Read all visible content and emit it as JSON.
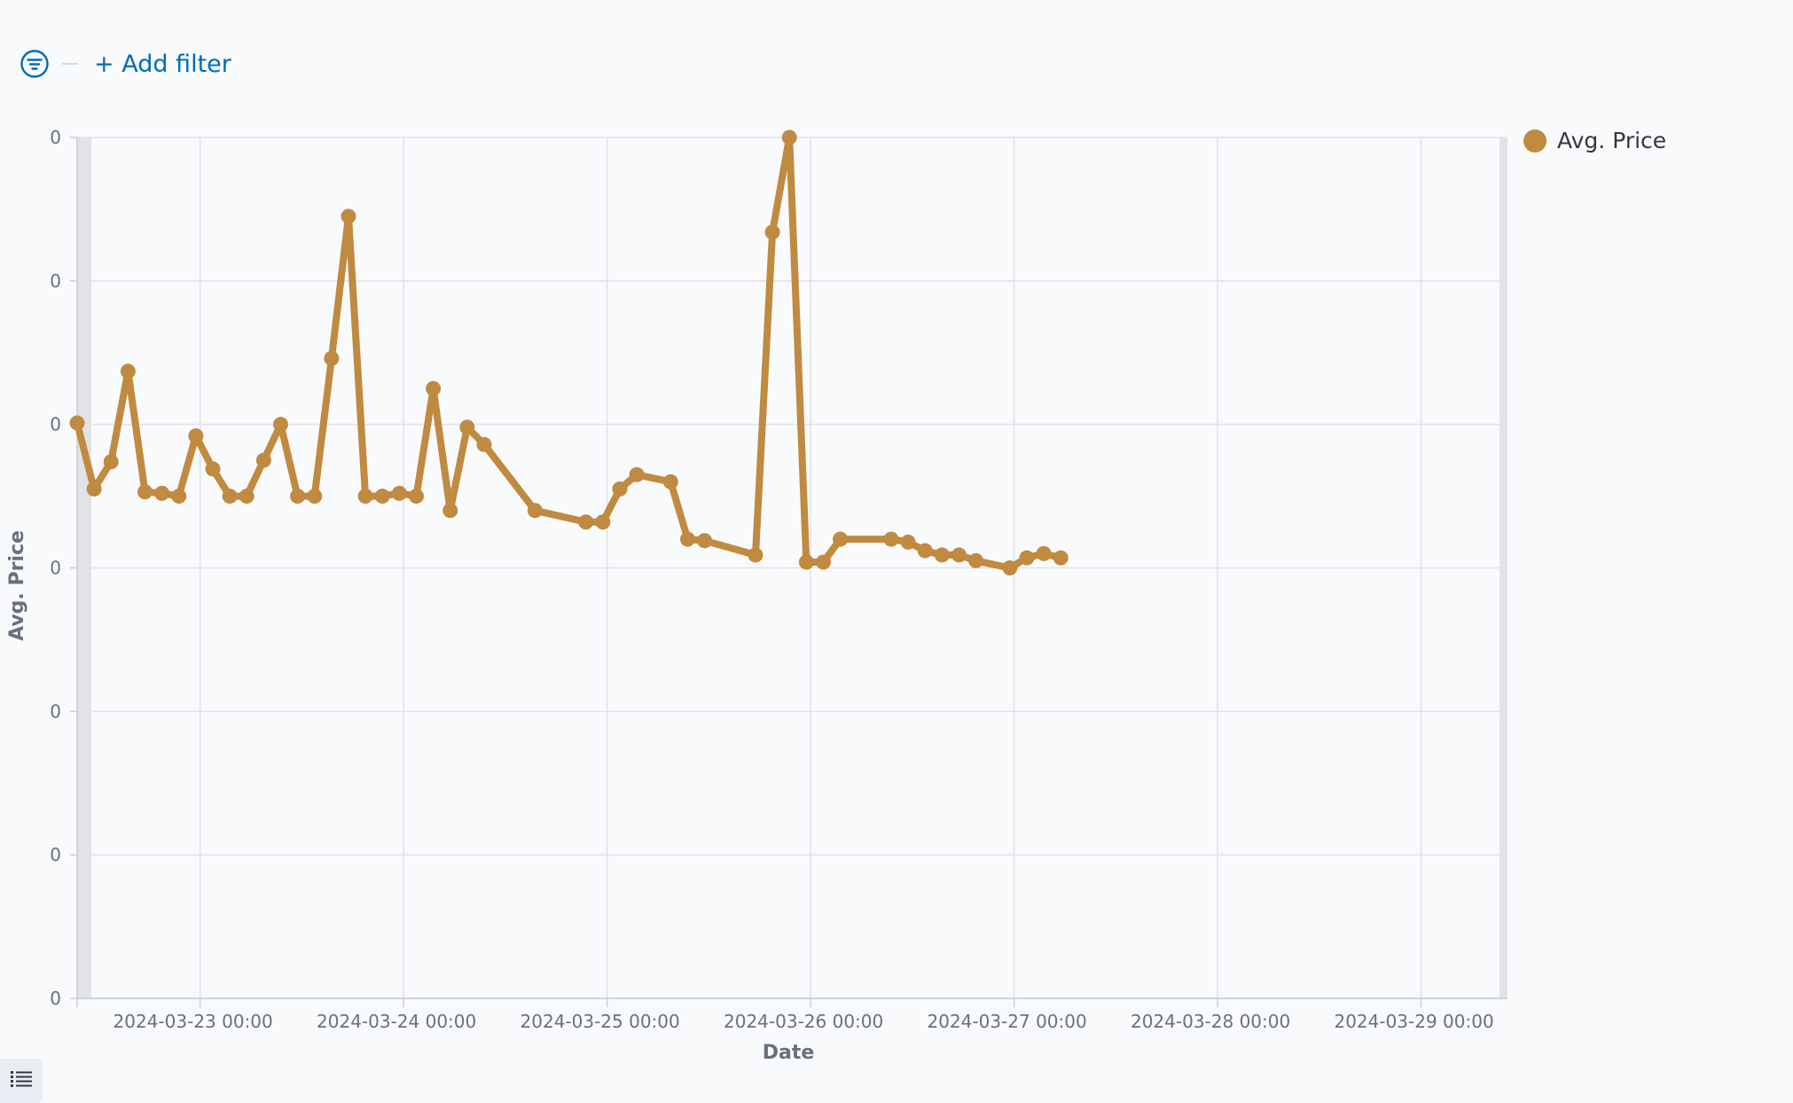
{
  "filter_bar": {
    "add_filter_label": "+ Add filter",
    "icon": "filter-icon"
  },
  "legend": {
    "items": [
      {
        "label": "Avg. Price",
        "color": "#c08a40"
      }
    ]
  },
  "list_toggle": {
    "icon": "list-icon"
  },
  "chart_data": {
    "type": "line",
    "title": "",
    "xlabel": "Date",
    "ylabel": "Avg. Price",
    "grid": true,
    "legend_position": "right",
    "y_tick_labels": [
      "0",
      "0",
      "0",
      "0",
      "0",
      "0",
      "0"
    ],
    "ylim": [
      0,
      6
    ],
    "xlim": [
      "2024-03-22 09:30",
      "2024-03-29 10:30"
    ],
    "x_ticks": [
      "2024-03-23 00:00",
      "2024-03-24 00:00",
      "2024-03-25 00:00",
      "2024-03-26 00:00",
      "2024-03-27 00:00",
      "2024-03-28 00:00",
      "2024-03-29 00:00"
    ],
    "series": [
      {
        "name": "Avg. Price",
        "color": "#c08a40",
        "points": [
          [
            "2024-03-22 09:30",
            4.01
          ],
          [
            "2024-03-22 11:30",
            3.55
          ],
          [
            "2024-03-22 13:30",
            3.74
          ],
          [
            "2024-03-22 15:30",
            4.37
          ],
          [
            "2024-03-22 17:30",
            3.53
          ],
          [
            "2024-03-22 19:30",
            3.52
          ],
          [
            "2024-03-22 21:30",
            3.5
          ],
          [
            "2024-03-22 23:30",
            3.92
          ],
          [
            "2024-03-23 01:30",
            3.69
          ],
          [
            "2024-03-23 03:30",
            3.5
          ],
          [
            "2024-03-23 05:30",
            3.5
          ],
          [
            "2024-03-23 07:30",
            3.75
          ],
          [
            "2024-03-23 09:30",
            4.0
          ],
          [
            "2024-03-23 11:30",
            3.5
          ],
          [
            "2024-03-23 13:30",
            3.5
          ],
          [
            "2024-03-23 15:30",
            4.46
          ],
          [
            "2024-03-23 17:30",
            5.45
          ],
          [
            "2024-03-23 19:30",
            3.5
          ],
          [
            "2024-03-23 21:30",
            3.5
          ],
          [
            "2024-03-23 23:30",
            3.52
          ],
          [
            "2024-03-24 01:30",
            3.5
          ],
          [
            "2024-03-24 03:30",
            4.25
          ],
          [
            "2024-03-24 05:30",
            3.4
          ],
          [
            "2024-03-24 07:30",
            3.98
          ],
          [
            "2024-03-24 09:30",
            3.86
          ],
          [
            "2024-03-24 15:30",
            3.4
          ],
          [
            "2024-03-24 21:30",
            3.32
          ],
          [
            "2024-03-24 23:30",
            3.32
          ],
          [
            "2024-03-25 01:30",
            3.55
          ],
          [
            "2024-03-25 03:30",
            3.65
          ],
          [
            "2024-03-25 07:30",
            3.6
          ],
          [
            "2024-03-25 09:30",
            3.2
          ],
          [
            "2024-03-25 11:30",
            3.19
          ],
          [
            "2024-03-25 17:30",
            3.09
          ],
          [
            "2024-03-25 19:30",
            5.34
          ],
          [
            "2024-03-25 21:30",
            6.0
          ],
          [
            "2024-03-25 23:30",
            3.04
          ],
          [
            "2024-03-26 01:30",
            3.04
          ],
          [
            "2024-03-26 03:30",
            3.2
          ],
          [
            "2024-03-26 09:30",
            3.2
          ],
          [
            "2024-03-26 11:30",
            3.18
          ],
          [
            "2024-03-26 13:30",
            3.12
          ],
          [
            "2024-03-26 15:30",
            3.09
          ],
          [
            "2024-03-26 17:30",
            3.09
          ],
          [
            "2024-03-26 19:30",
            3.05
          ],
          [
            "2024-03-26 23:30",
            3.0
          ],
          [
            "2024-03-27 01:30",
            3.07
          ],
          [
            "2024-03-27 03:30",
            3.1
          ],
          [
            "2024-03-27 05:30",
            3.07
          ]
        ]
      }
    ]
  }
}
